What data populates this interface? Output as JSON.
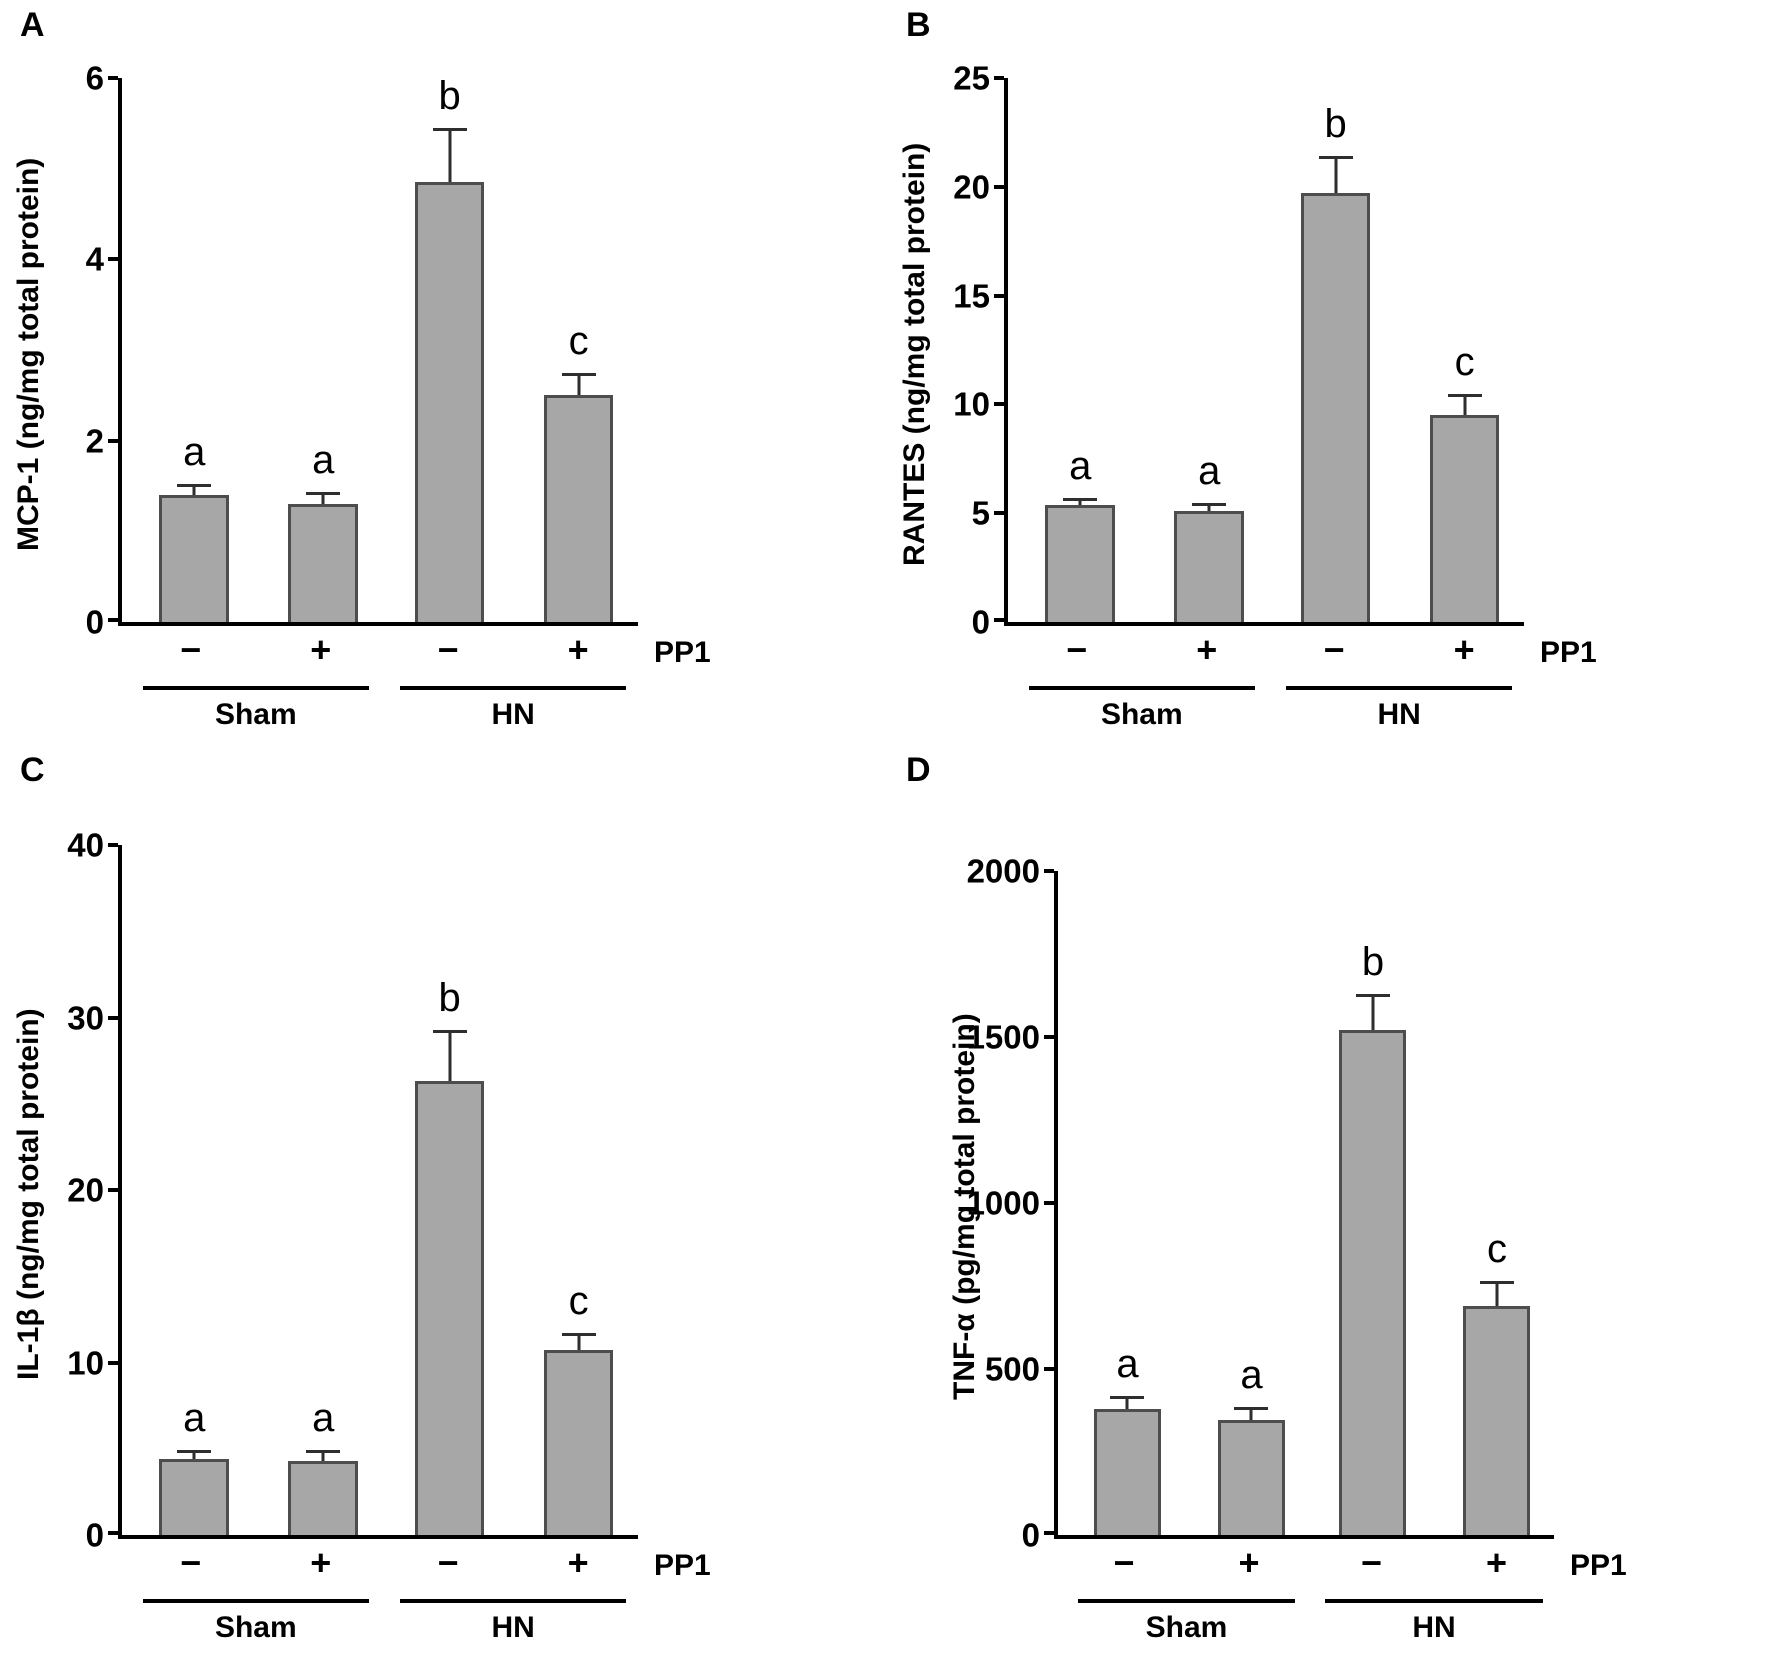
{
  "figure": {
    "background": "#ffffff",
    "bar_fill": "#a7a7a7",
    "bar_border": "#4d4d4d",
    "axis_color": "#000000"
  },
  "chart_data": [
    {
      "panel": "A",
      "type": "bar",
      "ylabel": "MCP-1 (ng/mg total protein)",
      "ylim": [
        0,
        6
      ],
      "yticks": [
        0,
        2,
        4,
        6
      ],
      "categories": [
        "Sham −PP1",
        "Sham +PP1",
        "HN −PP1",
        "HN +PP1"
      ],
      "slugs": [
        "sham-minus-pp1",
        "sham-plus-pp1",
        "hn-minus-pp1",
        "hn-plus-pp1"
      ],
      "values": [
        1.4,
        1.3,
        4.85,
        2.5
      ],
      "errors": [
        0.12,
        0.13,
        0.6,
        0.25
      ],
      "significance_letters": [
        "a",
        "a",
        "b",
        "c"
      ],
      "xticklabels": [
        "−",
        "+",
        "−",
        "+"
      ],
      "treatment_label": "PP1",
      "groups": [
        {
          "label": "Sham",
          "bars": [
            0,
            1
          ]
        },
        {
          "label": "HN",
          "bars": [
            2,
            3
          ]
        }
      ],
      "grid": false,
      "legend": "none"
    },
    {
      "panel": "B",
      "type": "bar",
      "ylabel": "RANTES (ng/mg total protein)",
      "ylim": [
        0,
        25
      ],
      "yticks": [
        0,
        5,
        10,
        15,
        20,
        25
      ],
      "categories": [
        "Sham −PP1",
        "Sham +PP1",
        "HN −PP1",
        "HN +PP1"
      ],
      "slugs": [
        "sham-minus-pp1",
        "sham-plus-pp1",
        "hn-minus-pp1",
        "hn-plus-pp1"
      ],
      "values": [
        5.4,
        5.1,
        19.7,
        9.5
      ],
      "errors": [
        0.3,
        0.35,
        1.7,
        1.0
      ],
      "significance_letters": [
        "a",
        "a",
        "b",
        "c"
      ],
      "xticklabels": [
        "−",
        "+",
        "−",
        "+"
      ],
      "treatment_label": "PP1",
      "groups": [
        {
          "label": "Sham",
          "bars": [
            0,
            1
          ]
        },
        {
          "label": "HN",
          "bars": [
            2,
            3
          ]
        }
      ],
      "grid": false,
      "legend": "none"
    },
    {
      "panel": "C",
      "type": "bar",
      "ylabel": "IL-1β  (ng/mg total protein)",
      "ylim": [
        0,
        40
      ],
      "yticks": [
        0,
        10,
        20,
        30,
        40
      ],
      "categories": [
        "Sham −PP1",
        "Sham +PP1",
        "HN −PP1",
        "HN +PP1"
      ],
      "slugs": [
        "sham-minus-pp1",
        "sham-plus-pp1",
        "hn-minus-pp1",
        "hn-plus-pp1"
      ],
      "values": [
        4.4,
        4.3,
        26.3,
        10.7
      ],
      "errors": [
        0.5,
        0.6,
        3.0,
        1.0
      ],
      "significance_letters": [
        "a",
        "a",
        "b",
        "c"
      ],
      "xticklabels": [
        "−",
        "+",
        "−",
        "+"
      ],
      "treatment_label": "PP1",
      "groups": [
        {
          "label": "Sham",
          "bars": [
            0,
            1
          ]
        },
        {
          "label": "HN",
          "bars": [
            2,
            3
          ]
        }
      ],
      "grid": false,
      "legend": "none"
    },
    {
      "panel": "D",
      "type": "bar",
      "ylabel": "TNF-α (pg/mg total protein)",
      "ylim": [
        0,
        2000
      ],
      "yticks": [
        0,
        500,
        1000,
        1500,
        2000
      ],
      "categories": [
        "Sham −PP1",
        "Sham +PP1",
        "HN −PP1",
        "HN +PP1"
      ],
      "slugs": [
        "sham-minus-pp1",
        "sham-plus-pp1",
        "hn-minus-pp1",
        "hn-plus-pp1"
      ],
      "values": [
        380,
        345,
        1520,
        690
      ],
      "errors": [
        40,
        40,
        110,
        75
      ],
      "significance_letters": [
        "a",
        "a",
        "b",
        "c"
      ],
      "xticklabels": [
        "−",
        "+",
        "−",
        "+"
      ],
      "treatment_label": "PP1",
      "groups": [
        {
          "label": "Sham",
          "bars": [
            0,
            1
          ]
        },
        {
          "label": "HN",
          "bars": [
            2,
            3
          ]
        }
      ],
      "grid": false,
      "legend": "none"
    }
  ]
}
